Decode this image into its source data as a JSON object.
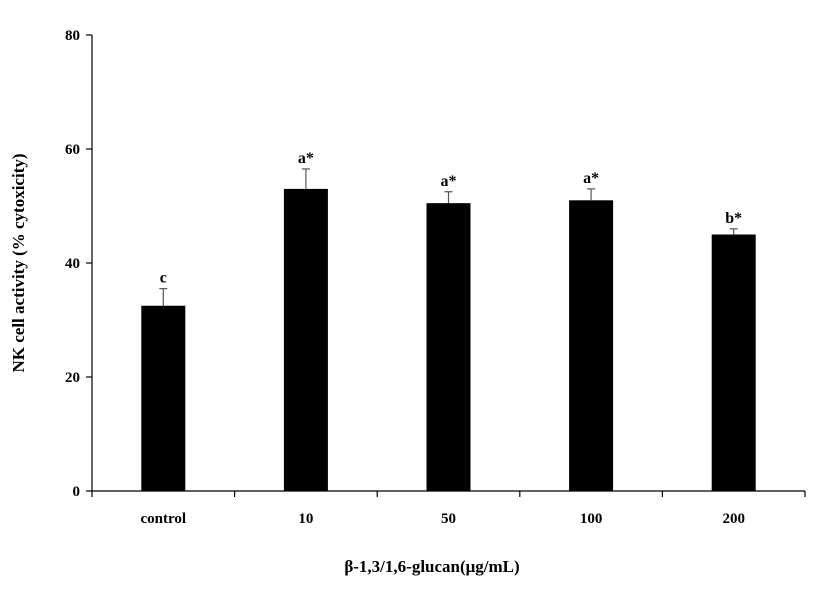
{
  "chart_data": {
    "type": "bar",
    "categories": [
      "control",
      "10",
      "50",
      "100",
      "200"
    ],
    "values": [
      32.5,
      53,
      50.5,
      51,
      45
    ],
    "errors": [
      3,
      3.5,
      2,
      2,
      1
    ],
    "annotations": [
      "c",
      "a*",
      "a*",
      "a*",
      "b*"
    ],
    "xlabel": "β-1,3/1,6-glucan(μg/mL)",
    "ylabel": "NK cell activity (% cytoxicity)",
    "ylim": [
      0,
      80
    ],
    "yticks": [
      "0",
      "20",
      "40",
      "60",
      "80"
    ],
    "grid": false,
    "bar_color": "#000000"
  }
}
